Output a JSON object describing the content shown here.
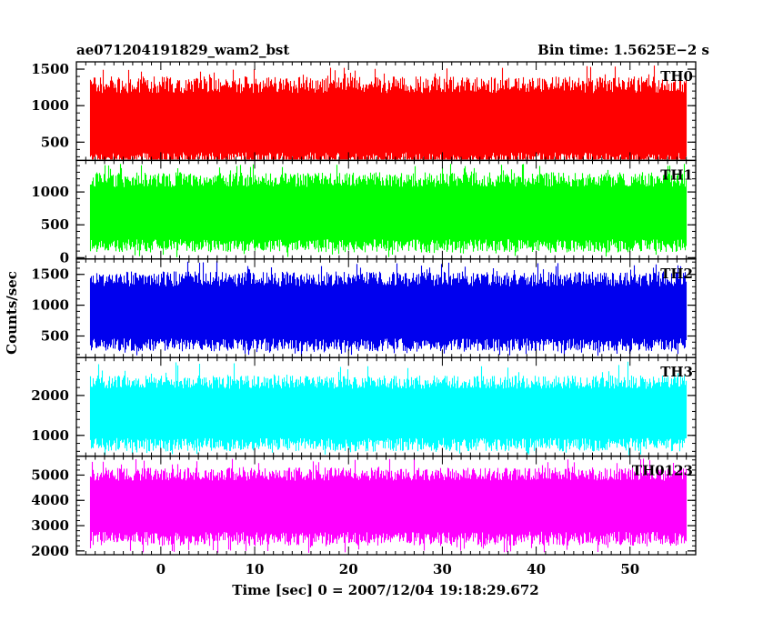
{
  "chart_data": {
    "type": "line",
    "title": "ae071204191829_wam2_bst",
    "subtitle": "Bin time: 1.5625E−2 s",
    "xlabel": "Time [sec] 0 = 2007/12/04 19:18:29.672",
    "ylabel": "Counts/sec",
    "xlim": [
      -9,
      57
    ],
    "x_ticks": [
      0,
      10,
      20,
      30,
      40,
      50
    ],
    "x_range_data": [
      -7.5,
      56
    ],
    "grid": false,
    "panels": [
      {
        "name": "TH0",
        "color": "#ff0000",
        "ylim": [
          250,
          1600
        ],
        "y_ticks": [
          500,
          1000,
          1500
        ],
        "mean": 750,
        "low": 150,
        "high": 1400,
        "peak": 1550
      },
      {
        "name": "TH1",
        "color": "#00ff00",
        "ylim": [
          -20,
          1480
        ],
        "y_ticks": [
          0,
          500,
          1000
        ],
        "mean": 650,
        "low": 80,
        "high": 1300,
        "peak": 1430
      },
      {
        "name": "TH2",
        "color": "#0000ee",
        "ylim": [
          150,
          1750
        ],
        "y_ticks": [
          500,
          1000,
          1500
        ],
        "mean": 850,
        "low": 250,
        "high": 1550,
        "peak": 1720
      },
      {
        "name": "TH3",
        "color": "#00ffff",
        "ylim": [
          480,
          2950
        ],
        "y_ticks": [
          1000,
          2000
        ],
        "mean": 1550,
        "low": 600,
        "high": 2500,
        "peak": 2850
      },
      {
        "name": "TH0123",
        "color": "#ff00ff",
        "ylim": [
          1850,
          5750
        ],
        "y_ticks": [
          2000,
          3000,
          4000,
          5000
        ],
        "mean": 3800,
        "low": 2200,
        "high": 5300,
        "peak": 5650
      }
    ]
  }
}
